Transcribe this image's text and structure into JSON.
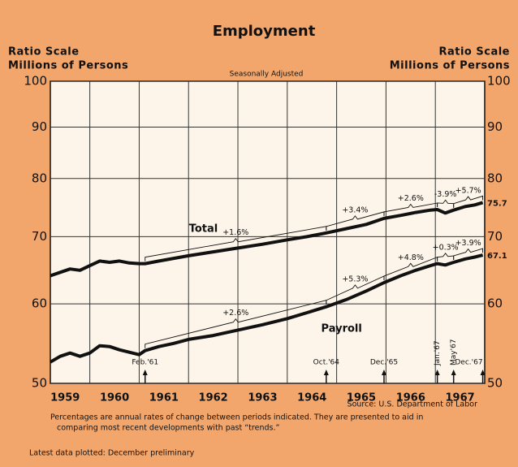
{
  "chart_data": {
    "type": "line",
    "title": "Employment",
    "y_axis_label_left": [
      "Ratio Scale",
      "Millions of Persons"
    ],
    "y_axis_label_right": [
      "Ratio Scale",
      "Millions of Persons"
    ],
    "subtitle": "Seasonally Adjusted",
    "source": "Source: U.S. Department of Labor",
    "footnote": [
      "Percentages are annual rates of change between periods indicated. They are presented to aid in",
      "comparing most recent developments with past “trends.”"
    ],
    "latest": "Latest data plotted: December preliminary",
    "log_scale": true,
    "grid": true,
    "ylim": [
      50,
      100
    ],
    "yticks": [
      50,
      60,
      70,
      80,
      90,
      100
    ],
    "xlim": [
      1959.2,
      1968.0
    ],
    "xticks": [
      1959,
      1960,
      1961,
      1962,
      1963,
      1964,
      1965,
      1966,
      1967
    ],
    "x": [
      1959.2,
      1959.4,
      1959.6,
      1959.8,
      1960.0,
      1960.2,
      1960.4,
      1960.6,
      1960.8,
      1961.0,
      1961.12,
      1961.4,
      1961.7,
      1962.0,
      1962.5,
      1963.0,
      1963.5,
      1964.0,
      1964.4,
      1964.79,
      1965.2,
      1965.6,
      1965.96,
      1966.3,
      1966.6,
      1966.9,
      1967.04,
      1967.2,
      1967.37,
      1967.6,
      1967.8,
      1967.96
    ],
    "series": [
      {
        "name": "Total",
        "color": "#111111",
        "values": [
          64.0,
          64.5,
          65.0,
          64.8,
          65.5,
          66.2,
          66.0,
          66.2,
          65.9,
          65.8,
          65.8,
          66.2,
          66.6,
          67.0,
          67.6,
          68.2,
          68.8,
          69.5,
          70.0,
          70.6,
          71.3,
          72.0,
          73.0,
          73.5,
          74.0,
          74.4,
          74.5,
          73.9,
          74.4,
          75.0,
          75.3,
          75.7
        ]
      },
      {
        "name": "Payroll",
        "color": "#111111",
        "values": [
          52.5,
          53.2,
          53.6,
          53.2,
          53.6,
          54.5,
          54.4,
          54.0,
          53.7,
          53.4,
          53.9,
          54.4,
          54.8,
          55.3,
          55.8,
          56.5,
          57.2,
          58.0,
          58.8,
          59.6,
          60.6,
          61.8,
          63.0,
          64.0,
          64.8,
          65.5,
          65.8,
          65.6,
          66.0,
          66.5,
          66.8,
          67.1
        ]
      }
    ],
    "markers": [
      {
        "label": "Feb.'61",
        "x": 1961.12
      },
      {
        "label": "Oct.'64",
        "x": 1964.79
      },
      {
        "label": "Dec.'65",
        "x": 1965.96
      },
      {
        "label": "Jan.'67",
        "x": 1967.04
      },
      {
        "label": "May'67",
        "x": 1967.37
      },
      {
        "label": "Dec.'67",
        "x": 1967.96
      }
    ],
    "annotations": [
      {
        "text": "+1.6%",
        "series": 0,
        "from": 0,
        "to": 1
      },
      {
        "text": "+3.4%",
        "series": 0,
        "from": 1,
        "to": 2
      },
      {
        "text": "+2.6%",
        "series": 0,
        "from": 2,
        "to": 3
      },
      {
        "text": "-3.9%",
        "series": 0,
        "from": 3,
        "to": 4
      },
      {
        "text": "+5.7%",
        "series": 0,
        "from": 4,
        "to": 5
      },
      {
        "text": "+2.6%",
        "series": 1,
        "from": 0,
        "to": 1
      },
      {
        "text": "+5.3%",
        "series": 1,
        "from": 1,
        "to": 2
      },
      {
        "text": "+4.8%",
        "series": 1,
        "from": 2,
        "to": 3
      },
      {
        "text": "+0.3%",
        "series": 1,
        "from": 3,
        "to": 4
      },
      {
        "text": "+3.9%",
        "series": 1,
        "from": 4,
        "to": 5
      }
    ]
  }
}
